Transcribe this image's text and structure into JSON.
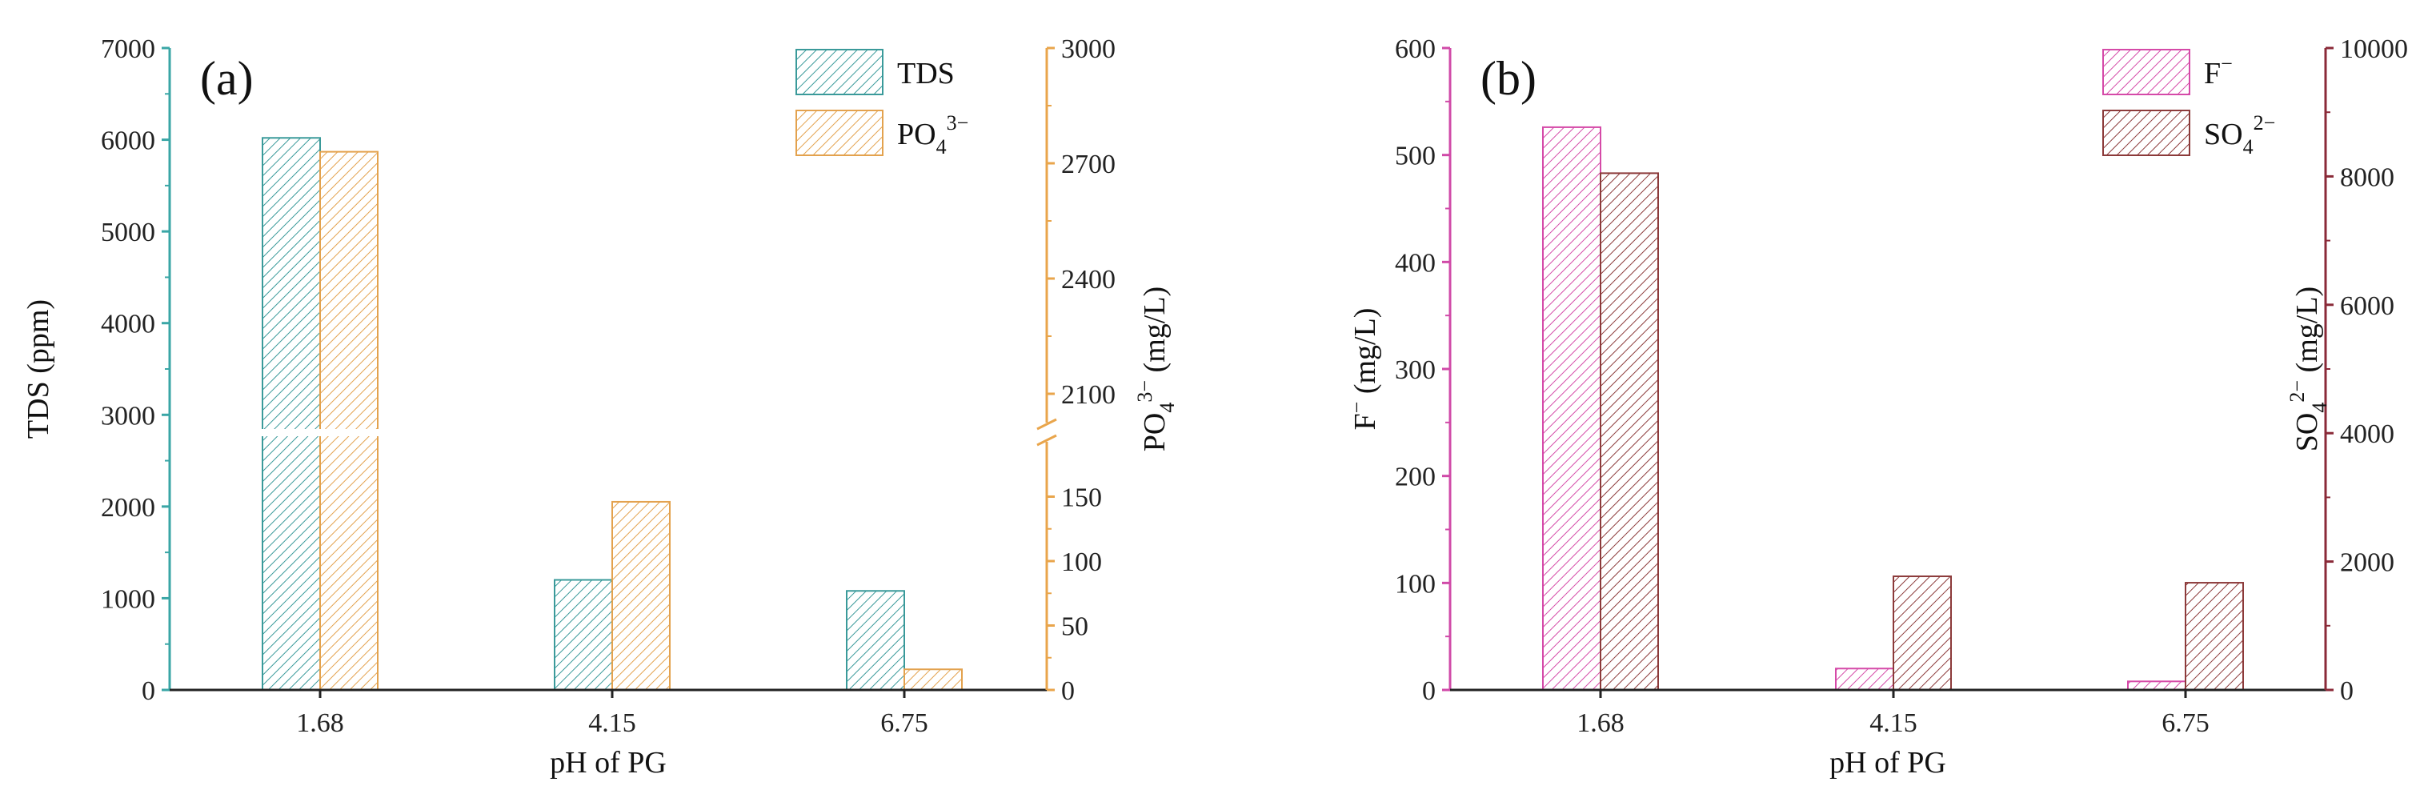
{
  "chart_data": [
    {
      "type": "bar",
      "panel_label": "(a)",
      "xlabel": "pH of PG",
      "categories": [
        "1.68",
        "4.15",
        "6.75"
      ],
      "left_axis": {
        "label": "TDS (ppm)",
        "ylim": [
          0,
          7000
        ],
        "ticks": [
          "0",
          "1000",
          "2000",
          "3000",
          "4000",
          "5000",
          "6000",
          "7000"
        ],
        "color": "#3aa6a6"
      },
      "right_axis": {
        "label_base": "PO",
        "label_sub": "4",
        "label_sup": "3−",
        "label_unit": "(mg/L)",
        "broken": true,
        "lower_range": [
          0,
          200
        ],
        "lower_ticks": [
          "0",
          "50",
          "100",
          "150"
        ],
        "upper_range": [
          2000,
          3000
        ],
        "upper_ticks": [
          "2100",
          "2400",
          "2700",
          "3000"
        ],
        "color": "#e9a54b"
      },
      "series": [
        {
          "name": "TDS",
          "axis": "left",
          "color": "#3a9a9a",
          "values": [
            6020,
            1200,
            1080
          ]
        },
        {
          "name": "PO",
          "name_sub": "4",
          "name_sup": "3−",
          "axis": "right",
          "color": "#e3a24e",
          "values": [
            2730,
            146,
            16
          ]
        }
      ],
      "legend_position": "top-right",
      "grid": false
    },
    {
      "type": "bar",
      "panel_label": "(b)",
      "xlabel": "pH of PG",
      "categories": [
        "1.68",
        "4.15",
        "6.75"
      ],
      "left_axis": {
        "label_base": "F",
        "label_sup": "−",
        "label_unit": " (mg/L)",
        "ylim": [
          0,
          600
        ],
        "ticks": [
          "0",
          "100",
          "200",
          "300",
          "400",
          "500",
          "600"
        ],
        "color": "#d04aa8"
      },
      "right_axis": {
        "label_base": "SO",
        "label_sub": "4",
        "label_sup": "2−",
        "label_unit": " (mg/L)",
        "ylim": [
          0,
          10000
        ],
        "ticks": [
          "0",
          "2000",
          "4000",
          "6000",
          "8000",
          "10000"
        ],
        "color": "#8a2a38"
      },
      "series": [
        {
          "name": "F",
          "name_sup": "−",
          "axis": "left",
          "color": "#d54aa8",
          "values": [
            526,
            20,
            8
          ]
        },
        {
          "name": "SO",
          "name_sub": "4",
          "name_sup": "2−",
          "axis": "right",
          "color": "#8c3a3a",
          "values": [
            8050,
            1770,
            1670
          ]
        }
      ],
      "legend_position": "top-right",
      "grid": false
    }
  ]
}
